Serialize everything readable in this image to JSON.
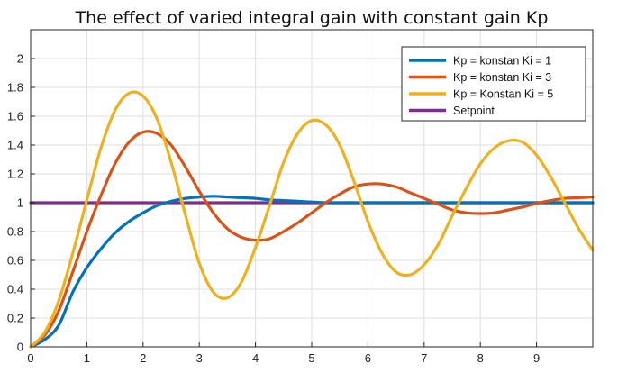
{
  "chart_data": {
    "type": "line",
    "title": "The effect of varied integral gain with constant gain Kp",
    "xlabel": "",
    "ylabel": "",
    "xlim": [
      0,
      10
    ],
    "ylim": [
      0,
      2.2
    ],
    "xticks": [
      "0",
      "1",
      "2",
      "3",
      "4",
      "5",
      "6",
      "7",
      "8",
      "9"
    ],
    "yticks": [
      "0",
      "0.2",
      "0.4",
      "0.6",
      "0.8",
      "1",
      "1.2",
      "1.4",
      "1.6",
      "1.8",
      "2"
    ],
    "grid": true,
    "legend_position": "top-right",
    "x": [
      0,
      0.25,
      0.5,
      0.75,
      1,
      1.25,
      1.5,
      1.75,
      2,
      2.25,
      2.5,
      2.75,
      3,
      3.25,
      3.5,
      3.75,
      4,
      4.25,
      4.5,
      4.75,
      5,
      5.25,
      5.5,
      5.75,
      6,
      6.25,
      6.5,
      6.75,
      7,
      7.25,
      7.5,
      7.75,
      8,
      8.25,
      8.5,
      8.75,
      9,
      9.25,
      9.5,
      9.75,
      10
    ],
    "series": [
      {
        "name": "Kp = konstan Ki = 1",
        "color": "#0072BD",
        "values": [
          0,
          0.05,
          0.15,
          0.38,
          0.55,
          0.68,
          0.79,
          0.87,
          0.93,
          0.98,
          1.01,
          1.03,
          1.04,
          1.045,
          1.04,
          1.035,
          1.03,
          1.02,
          1.015,
          1.01,
          1.005,
          1.0,
          1.0,
          1.0,
          1.0,
          1.0,
          1.0,
          1.0,
          1.0,
          1.0,
          1.0,
          1.0,
          1.0,
          1.0,
          1.0,
          1.0,
          1.0,
          1.0,
          1.0,
          1.0,
          1.0
        ]
      },
      {
        "name": "Kp = konstan Ki = 3",
        "color": "#D95319",
        "values": [
          0,
          0.08,
          0.25,
          0.52,
          0.8,
          1.05,
          1.27,
          1.42,
          1.49,
          1.48,
          1.4,
          1.25,
          1.08,
          0.93,
          0.82,
          0.76,
          0.74,
          0.75,
          0.8,
          0.86,
          0.93,
          1.0,
          1.06,
          1.11,
          1.13,
          1.13,
          1.11,
          1.07,
          1.03,
          0.99,
          0.95,
          0.93,
          0.925,
          0.93,
          0.95,
          0.97,
          0.995,
          1.015,
          1.03,
          1.035,
          1.04
        ]
      },
      {
        "name": "Kp = Konstan Ki = 5",
        "color": "#EDB120",
        "values": [
          0,
          0.1,
          0.32,
          0.65,
          1.02,
          1.38,
          1.64,
          1.76,
          1.74,
          1.58,
          1.28,
          0.92,
          0.58,
          0.38,
          0.34,
          0.45,
          0.69,
          0.98,
          1.28,
          1.48,
          1.57,
          1.54,
          1.4,
          1.15,
          0.87,
          0.65,
          0.52,
          0.5,
          0.57,
          0.71,
          0.91,
          1.1,
          1.27,
          1.38,
          1.43,
          1.42,
          1.33,
          1.18,
          1.0,
          0.82,
          0.67
        ]
      },
      {
        "name": "Setpoint",
        "color": "#7E2F8E",
        "values": [
          1,
          1,
          1,
          1,
          1,
          1,
          1,
          1,
          1,
          1,
          1,
          1,
          1,
          1,
          1,
          1,
          1,
          1,
          1,
          1,
          1,
          1,
          1,
          1,
          1,
          1,
          1,
          1,
          1,
          1,
          1,
          1,
          1,
          1,
          1,
          1,
          1,
          1,
          1,
          1,
          1
        ]
      }
    ]
  }
}
